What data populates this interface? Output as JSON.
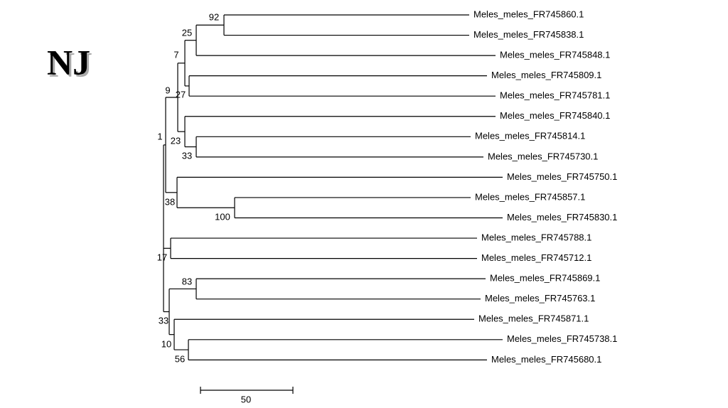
{
  "title": "NJ",
  "leaves": [
    "Meles_meles_FR745860.1",
    "Meles_meles_FR745838.1",
    "Meles_meles_FR745848.1",
    "Meles_meles_FR745809.1",
    "Meles_meles_FR745781.1",
    "Meles_meles_FR745840.1",
    "Meles_meles_FR745814.1",
    "Meles_meles_FR745730.1",
    "Meles_meles_FR745750.1",
    "Meles_meles_FR745857.1",
    "Meles_meles_FR745830.1",
    "Meles_meles_FR745788.1",
    "Meles_meles_FR745712.1",
    "Meles_meles_FR745869.1",
    "Meles_meles_FR745763.1",
    "Meles_meles_FR745871.1",
    "Meles_meles_FR745738.1",
    "Meles_meles_FR745680.1"
  ],
  "bootstrap": [
    92,
    25,
    7,
    27,
    9,
    23,
    33,
    1,
    38,
    100,
    17,
    83,
    33,
    10,
    56
  ],
  "scale_bar": {
    "label": 50
  }
}
